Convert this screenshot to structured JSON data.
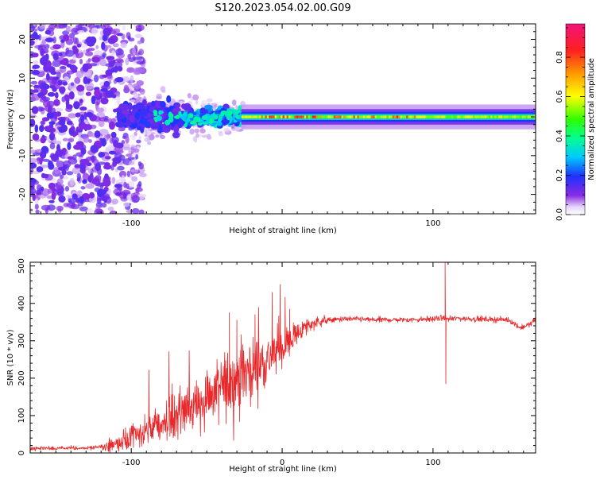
{
  "title": "S120.2023.054.02.00.G09",
  "chart_data": [
    {
      "type": "heatmap",
      "xlabel": "Height of straight line (km)",
      "ylabel": "Frequency (Hz)",
      "xlim": [
        -167,
        168
      ],
      "ylim": [
        -25,
        24
      ],
      "xticks": [
        -100,
        0,
        100
      ],
      "xtick_labels": [
        "-100",
        "",
        "100"
      ],
      "yticks": [
        -20,
        -10,
        0,
        10,
        20
      ],
      "ytick_labels": [
        "-20",
        "-10",
        "0",
        "10",
        "20"
      ],
      "colorbar": {
        "label": "Normalized spectral amplitude",
        "range": [
          0,
          0.97
        ],
        "ticks": [
          0.0,
          0.2,
          0.4,
          0.6,
          0.8
        ],
        "tick_labels": [
          "0.0",
          "0.2",
          "0.4",
          "0.6",
          "0.8"
        ],
        "colormap": [
          "#ffffff",
          "#dcc8f6",
          "#8a2be2",
          "#1e32ff",
          "#00c8ff",
          "#00ff70",
          "#78ff00",
          "#ffff00",
          "#ff9900",
          "#ff2020",
          "#f0147a"
        ]
      },
      "bands": [
        {
          "x": [
            -167,
            -108
          ],
          "freq_spread_hz": 24,
          "amplitude": 0.12,
          "description_visible": "scattered violet blobs"
        },
        {
          "x": [
            -108,
            -65
          ],
          "freq_spread_hz": 8,
          "amplitude": 0.25
        },
        {
          "x": [
            -65,
            -27
          ],
          "freq_spread_hz": 6,
          "amplitude": 0.4
        },
        {
          "x": [
            -27,
            168
          ],
          "freq_spread_hz": 1.5,
          "amplitude": 0.65,
          "peak_amplitude": 0.9
        }
      ]
    },
    {
      "type": "line",
      "xlabel": "Height of straight line (km)",
      "ylabel": "SNR (10 * v/v)",
      "xlim": [
        -167,
        168
      ],
      "ylim": [
        0,
        510
      ],
      "xticks": [
        -100,
        0,
        100
      ],
      "xtick_labels": [
        "-100",
        "0",
        "100"
      ],
      "yticks": [
        0,
        100,
        200,
        300,
        400,
        500
      ],
      "ytick_labels": [
        "0",
        "100",
        "200",
        "300",
        "400",
        "500"
      ],
      "line_color": "#e8282a",
      "series": [
        {
          "x": [
            -167,
            -150,
            -130,
            -115,
            -105,
            -95,
            -85,
            -75,
            -65,
            -55,
            -45,
            -35,
            -28,
            -20,
            -12,
            -5,
            0,
            5,
            10,
            15,
            20,
            25,
            30,
            40,
            50,
            60,
            80,
            100,
            105,
            108,
            110,
            115,
            130,
            150,
            158,
            165,
            168
          ],
          "values": [
            12,
            12,
            13,
            18,
            30,
            50,
            70,
            90,
            110,
            135,
            160,
            185,
            205,
            225,
            245,
            265,
            280,
            300,
            320,
            335,
            345,
            352,
            355,
            358,
            358,
            356,
            356,
            358,
            360,
            362,
            358,
            360,
            358,
            356,
            335,
            345,
            360
          ]
        }
      ],
      "spikes": [
        {
          "x": -73,
          "value": 185
        },
        {
          "x": -35,
          "value": 375
        },
        {
          "x": -30,
          "value": 355
        },
        {
          "x": -18,
          "value": 370
        },
        {
          "x": 5,
          "value": 385
        },
        {
          "x": 108,
          "value": 510
        },
        {
          "x": 108.5,
          "value": 185
        }
      ]
    }
  ]
}
